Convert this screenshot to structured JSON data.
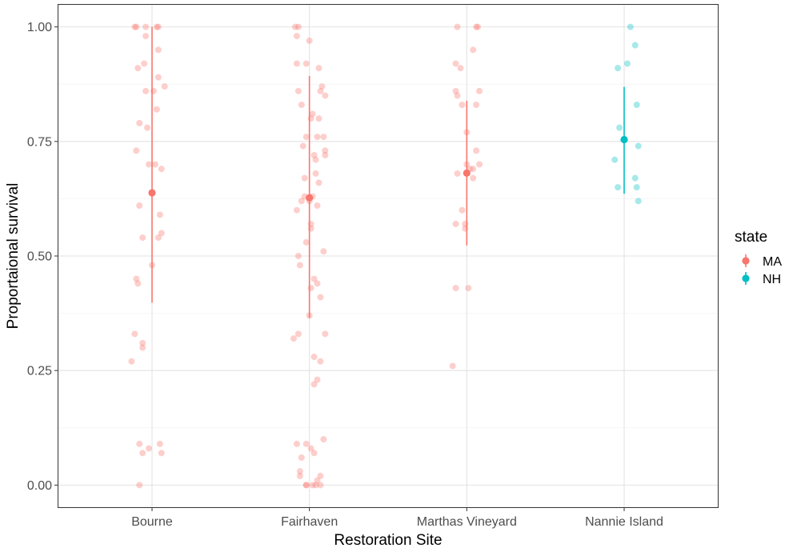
{
  "chart_data": {
    "type": "scatter",
    "xlabel": "Restoration Site",
    "ylabel": "Proportaional survival",
    "categories": [
      "Bourne",
      "Fairhaven",
      "Marthas Vineyard",
      "Nannie Island"
    ],
    "y_ticks": [
      "0.00",
      "0.25",
      "0.50",
      "0.75",
      "1.00"
    ],
    "ylim": [
      -0.05,
      1.05
    ],
    "grid": true,
    "legend": {
      "title": "state",
      "position": "right",
      "entries": [
        {
          "label": "MA",
          "color": "#F8766D"
        },
        {
          "label": "NH",
          "color": "#00BFC4"
        }
      ]
    },
    "summary": [
      {
        "site": "Bourne",
        "state": "MA",
        "mean": 0.638,
        "lower": 0.398,
        "upper": 1.0
      },
      {
        "site": "Fairhaven",
        "state": "MA",
        "mean": 0.627,
        "lower": 0.365,
        "upper": 0.893
      },
      {
        "site": "Marthas Vineyard",
        "state": "MA",
        "mean": 0.681,
        "lower": 0.523,
        "upper": 0.839
      },
      {
        "site": "Nannie Island",
        "state": "NH",
        "mean": 0.754,
        "lower": 0.636,
        "upper": 0.869
      }
    ],
    "points": [
      {
        "site": "Bourne",
        "state": "MA",
        "x": [
          0.9,
          0.96,
          0.89,
          1.03,
          1.04,
          0.96,
          1.04,
          0.91,
          0.95,
          1.04,
          1.08,
          0.96,
          1.01,
          1.03,
          0.92,
          0.97,
          0.9,
          0.98,
          1.02,
          1.06,
          0.92,
          1.05,
          1.06,
          1.04,
          0.94,
          1.0,
          0.9,
          0.91,
          0.89,
          0.94,
          0.94,
          0.87,
          0.92,
          0.94,
          1.05,
          0.98,
          1.06,
          0.92
        ],
        "y": [
          1.0,
          1.0,
          1.0,
          1.0,
          1.0,
          0.98,
          0.95,
          0.91,
          0.92,
          0.89,
          0.87,
          0.86,
          0.86,
          0.82,
          0.79,
          0.78,
          0.73,
          0.7,
          0.7,
          0.69,
          0.61,
          0.59,
          0.55,
          0.54,
          0.54,
          0.48,
          0.45,
          0.44,
          0.33,
          0.31,
          0.3,
          0.27,
          0.09,
          0.07,
          0.09,
          0.08,
          0.07,
          0.0
        ]
      },
      {
        "site": "Fairhaven",
        "state": "MA",
        "x": [
          1.91,
          2.0,
          1.92,
          1.98,
          2.06,
          2.08,
          2.07,
          1.93,
          2.1,
          1.95,
          2.02,
          2.01,
          2.06,
          2.05,
          1.98,
          2.09,
          1.96,
          2.03,
          2.1,
          2.1,
          2.04,
          1.97,
          2.06,
          2.02,
          1.97,
          1.95,
          2.0,
          2.05,
          1.92,
          2.01,
          2.01,
          1.98,
          2.09,
          1.93,
          1.94,
          2.03,
          2.05,
          2.01,
          2.07,
          2.0,
          1.93,
          1.9,
          2.1,
          2.03,
          2.07,
          2.05,
          2.03,
          2.09,
          1.92,
          1.98,
          2.01,
          2.03,
          1.95,
          1.94,
          1.94,
          2.07,
          2.05,
          1.98,
          2.04,
          2.02,
          1.98,
          2.07,
          1.92,
          1.93,
          2.04
        ],
        "y": [
          1.0,
          0.97,
          0.92,
          0.92,
          0.91,
          0.87,
          0.86,
          0.86,
          0.85,
          0.83,
          0.81,
          0.8,
          0.8,
          0.76,
          0.76,
          0.76,
          0.74,
          0.72,
          0.73,
          0.72,
          0.68,
          0.67,
          0.66,
          0.63,
          0.63,
          0.62,
          0.62,
          0.61,
          0.6,
          0.57,
          0.56,
          0.53,
          0.51,
          0.5,
          0.48,
          0.45,
          0.44,
          0.43,
          0.41,
          0.37,
          0.33,
          0.32,
          0.33,
          0.28,
          0.27,
          0.23,
          0.22,
          0.1,
          0.09,
          0.09,
          0.08,
          0.07,
          0.06,
          0.03,
          0.02,
          0.02,
          0.01,
          0.0,
          0.0,
          0.0,
          0.0,
          0.0,
          0.98,
          1.0,
          0.71
        ]
      },
      {
        "site": "Marthas Vineyard",
        "state": "MA",
        "x": [
          2.94,
          3.06,
          3.07,
          3.04,
          2.93,
          2.96,
          2.93,
          3.08,
          3.06,
          2.94,
          2.97,
          3.0,
          3.06,
          3.0,
          3.08,
          3.02,
          3.04,
          2.94,
          3.04,
          2.97,
          2.93,
          2.99,
          2.99,
          2.93,
          3.01,
          2.91
        ],
        "y": [
          1.0,
          1.0,
          1.0,
          0.95,
          0.92,
          0.91,
          0.86,
          0.86,
          0.83,
          0.85,
          0.83,
          0.77,
          0.73,
          0.7,
          0.7,
          0.69,
          0.69,
          0.68,
          0.67,
          0.6,
          0.57,
          0.56,
          0.57,
          0.43,
          0.43,
          0.26
        ]
      },
      {
        "site": "Nannie Island",
        "state": "NH",
        "x": [
          4.04,
          4.07,
          4.02,
          3.96,
          4.08,
          3.97,
          4.09,
          3.94,
          4.07,
          4.08,
          3.96,
          4.09
        ],
        "y": [
          1.0,
          0.96,
          0.92,
          0.91,
          0.83,
          0.78,
          0.74,
          0.71,
          0.67,
          0.65,
          0.65,
          0.62
        ]
      }
    ]
  }
}
